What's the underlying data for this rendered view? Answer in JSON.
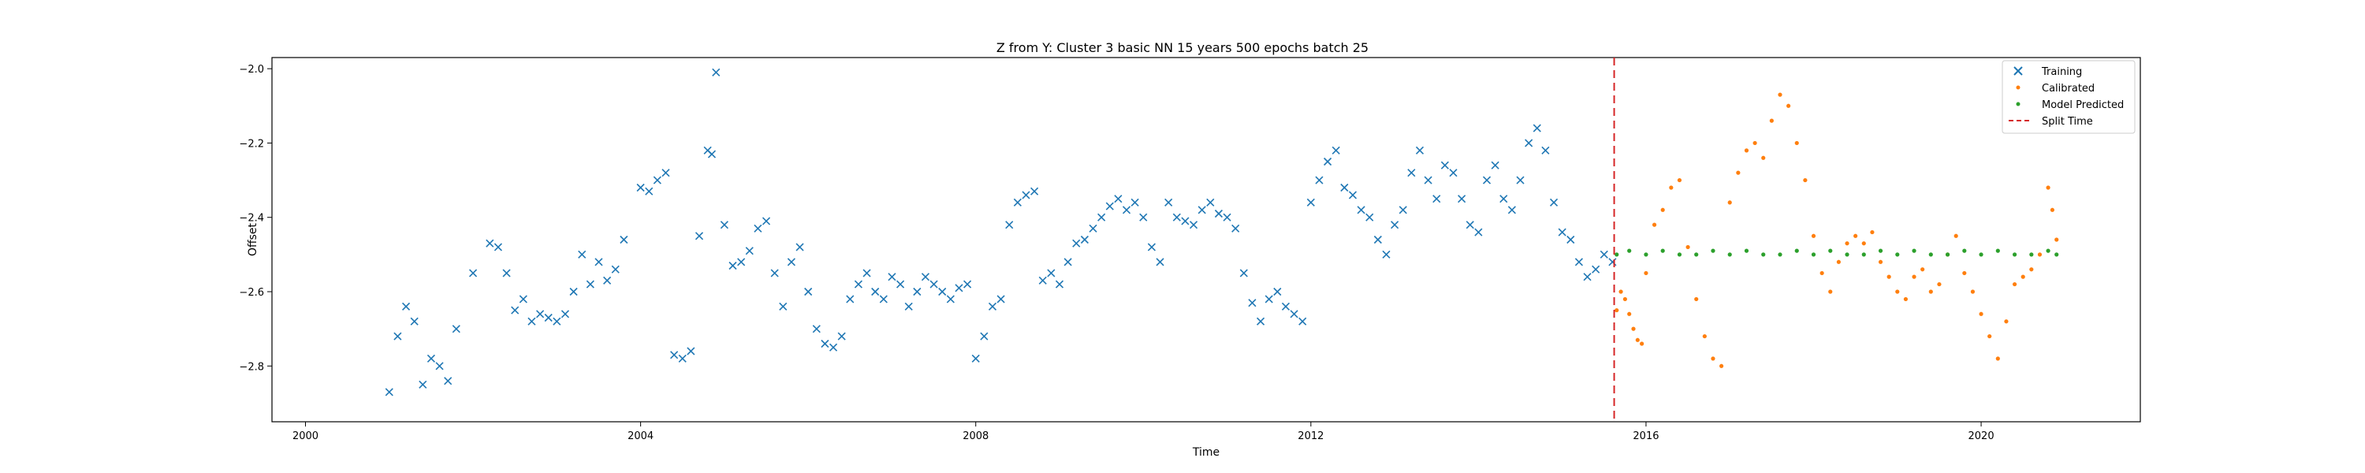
{
  "chart_data": {
    "type": "scatter",
    "title": "Z from Y: Cluster 3 basic NN 15 years 500 epochs batch 25",
    "xlabel": "Time",
    "ylabel": "Offset",
    "xlim": [
      1999.6,
      2021.9
    ],
    "ylim": [
      -2.95,
      -1.97
    ],
    "x_ticks": [
      2000,
      2004,
      2008,
      2012,
      2016,
      2020
    ],
    "y_ticks": [
      -2.8,
      -2.6,
      -2.4,
      -2.2,
      -2.0
    ],
    "y_tick_labels": [
      "−2.8",
      "−2.6",
      "−2.4",
      "−2.2",
      "−2.0"
    ],
    "grid": false,
    "legend_position": "top-right",
    "split_time": 2015.62,
    "series": [
      {
        "name": "Training",
        "marker": "x",
        "color": "#1f77b4",
        "x": [
          2001.0,
          2001.1,
          2001.2,
          2001.3,
          2001.4,
          2001.5,
          2001.6,
          2001.7,
          2001.8,
          2002.0,
          2002.2,
          2002.3,
          2002.4,
          2002.5,
          2002.6,
          2002.7,
          2002.8,
          2002.9,
          2003.0,
          2003.1,
          2003.2,
          2003.3,
          2003.4,
          2003.5,
          2003.6,
          2003.7,
          2003.8,
          2004.0,
          2004.1,
          2004.2,
          2004.3,
          2004.4,
          2004.5,
          2004.6,
          2004.7,
          2004.8,
          2004.85,
          2004.9,
          2005.0,
          2005.1,
          2005.2,
          2005.3,
          2005.4,
          2005.5,
          2005.6,
          2005.7,
          2005.8,
          2005.9,
          2006.0,
          2006.1,
          2006.2,
          2006.3,
          2006.4,
          2006.5,
          2006.6,
          2006.7,
          2006.8,
          2006.9,
          2007.0,
          2007.1,
          2007.2,
          2007.3,
          2007.4,
          2007.5,
          2007.6,
          2007.7,
          2007.8,
          2007.9,
          2008.0,
          2008.1,
          2008.2,
          2008.3,
          2008.4,
          2008.5,
          2008.6,
          2008.7,
          2008.8,
          2008.9,
          2009.0,
          2009.1,
          2009.2,
          2009.3,
          2009.4,
          2009.5,
          2009.6,
          2009.7,
          2009.8,
          2009.9,
          2010.0,
          2010.1,
          2010.2,
          2010.3,
          2010.4,
          2010.5,
          2010.6,
          2010.7,
          2010.8,
          2010.9,
          2011.0,
          2011.1,
          2011.2,
          2011.3,
          2011.4,
          2011.5,
          2011.6,
          2011.7,
          2011.8,
          2011.9,
          2012.0,
          2012.1,
          2012.2,
          2012.3,
          2012.4,
          2012.5,
          2012.6,
          2012.7,
          2012.8,
          2012.9,
          2013.0,
          2013.1,
          2013.2,
          2013.3,
          2013.4,
          2013.5,
          2013.6,
          2013.7,
          2013.8,
          2013.9,
          2014.0,
          2014.1,
          2014.2,
          2014.3,
          2014.4,
          2014.5,
          2014.6,
          2014.7,
          2014.8,
          2014.9,
          2015.0,
          2015.1,
          2015.2,
          2015.3,
          2015.4,
          2015.5,
          2015.6
        ],
        "y": [
          -2.87,
          -2.72,
          -2.64,
          -2.68,
          -2.85,
          -2.78,
          -2.8,
          -2.84,
          -2.7,
          -2.55,
          -2.47,
          -2.48,
          -2.55,
          -2.65,
          -2.62,
          -2.68,
          -2.66,
          -2.67,
          -2.68,
          -2.66,
          -2.6,
          -2.5,
          -2.58,
          -2.52,
          -2.57,
          -2.54,
          -2.46,
          -2.32,
          -2.33,
          -2.3,
          -2.28,
          -2.77,
          -2.78,
          -2.76,
          -2.45,
          -2.22,
          -2.23,
          -2.01,
          -2.42,
          -2.53,
          -2.52,
          -2.49,
          -2.43,
          -2.41,
          -2.55,
          -2.64,
          -2.52,
          -2.48,
          -2.6,
          -2.7,
          -2.74,
          -2.75,
          -2.72,
          -2.62,
          -2.58,
          -2.55,
          -2.6,
          -2.62,
          -2.56,
          -2.58,
          -2.64,
          -2.6,
          -2.56,
          -2.58,
          -2.6,
          -2.62,
          -2.59,
          -2.58,
          -2.78,
          -2.72,
          -2.64,
          -2.62,
          -2.42,
          -2.36,
          -2.34,
          -2.33,
          -2.57,
          -2.55,
          -2.58,
          -2.52,
          -2.47,
          -2.46,
          -2.43,
          -2.4,
          -2.37,
          -2.35,
          -2.38,
          -2.36,
          -2.4,
          -2.48,
          -2.52,
          -2.36,
          -2.4,
          -2.41,
          -2.42,
          -2.38,
          -2.36,
          -2.39,
          -2.4,
          -2.43,
          -2.55,
          -2.63,
          -2.68,
          -2.62,
          -2.6,
          -2.64,
          -2.66,
          -2.68,
          -2.36,
          -2.3,
          -2.25,
          -2.22,
          -2.32,
          -2.34,
          -2.38,
          -2.4,
          -2.46,
          -2.5,
          -2.42,
          -2.38,
          -2.28,
          -2.22,
          -2.3,
          -2.35,
          -2.26,
          -2.28,
          -2.35,
          -2.42,
          -2.44,
          -2.3,
          -2.26,
          -2.35,
          -2.38,
          -2.3,
          -2.2,
          -2.16,
          -2.22,
          -2.36,
          -2.44,
          -2.46,
          -2.52,
          -2.56,
          -2.54,
          -2.5,
          -2.52
        ],
        "y_note": "approximate values read from chart"
      },
      {
        "name": "Calibrated",
        "marker": "dot",
        "color": "#ff7f0e",
        "x": [
          2015.65,
          2015.7,
          2015.75,
          2015.8,
          2015.85,
          2015.9,
          2015.95,
          2016.0,
          2016.1,
          2016.2,
          2016.3,
          2016.4,
          2016.5,
          2016.6,
          2016.7,
          2016.8,
          2016.9,
          2017.0,
          2017.1,
          2017.2,
          2017.3,
          2017.4,
          2017.5,
          2017.6,
          2017.7,
          2017.8,
          2017.9,
          2018.0,
          2018.1,
          2018.2,
          2018.3,
          2018.4,
          2018.5,
          2018.6,
          2018.7,
          2018.8,
          2018.9,
          2019.0,
          2019.1,
          2019.2,
          2019.3,
          2019.4,
          2019.5,
          2019.6,
          2019.7,
          2019.8,
          2019.9,
          2020.0,
          2020.1,
          2020.2,
          2020.3,
          2020.4,
          2020.5,
          2020.6,
          2020.7,
          2020.8,
          2020.85,
          2020.9
        ],
        "y": [
          -2.65,
          -2.6,
          -2.62,
          -2.66,
          -2.7,
          -2.73,
          -2.74,
          -2.55,
          -2.42,
          -2.38,
          -2.32,
          -2.3,
          -2.48,
          -2.62,
          -2.72,
          -2.78,
          -2.8,
          -2.36,
          -2.28,
          -2.22,
          -2.2,
          -2.24,
          -2.14,
          -2.07,
          -2.1,
          -2.2,
          -2.3,
          -2.45,
          -2.55,
          -2.6,
          -2.52,
          -2.47,
          -2.45,
          -2.47,
          -2.44,
          -2.52,
          -2.56,
          -2.6,
          -2.62,
          -2.56,
          -2.54,
          -2.6,
          -2.58,
          -2.5,
          -2.45,
          -2.55,
          -2.6,
          -2.66,
          -2.72,
          -2.78,
          -2.68,
          -2.58,
          -2.56,
          -2.54,
          -2.5,
          -2.32,
          -2.38,
          -2.46
        ]
      },
      {
        "name": "Model Predicted",
        "marker": "dot",
        "color": "#2ca02c",
        "x": [
          2015.65,
          2015.8,
          2016.0,
          2016.2,
          2016.4,
          2016.6,
          2016.8,
          2017.0,
          2017.2,
          2017.4,
          2017.6,
          2017.8,
          2018.0,
          2018.2,
          2018.4,
          2018.6,
          2018.8,
          2019.0,
          2019.2,
          2019.4,
          2019.6,
          2019.8,
          2020.0,
          2020.2,
          2020.4,
          2020.6,
          2020.8,
          2020.9
        ],
        "y": [
          -2.5,
          -2.49,
          -2.5,
          -2.49,
          -2.5,
          -2.5,
          -2.49,
          -2.5,
          -2.49,
          -2.5,
          -2.5,
          -2.49,
          -2.5,
          -2.49,
          -2.5,
          -2.5,
          -2.49,
          -2.5,
          -2.49,
          -2.5,
          -2.5,
          -2.49,
          -2.5,
          -2.49,
          -2.5,
          -2.5,
          -2.49,
          -2.5
        ]
      }
    ],
    "legend_entries": [
      "Training",
      "Calibrated",
      "Model Predicted",
      "Split Time"
    ],
    "split_line_color": "#d62728"
  }
}
